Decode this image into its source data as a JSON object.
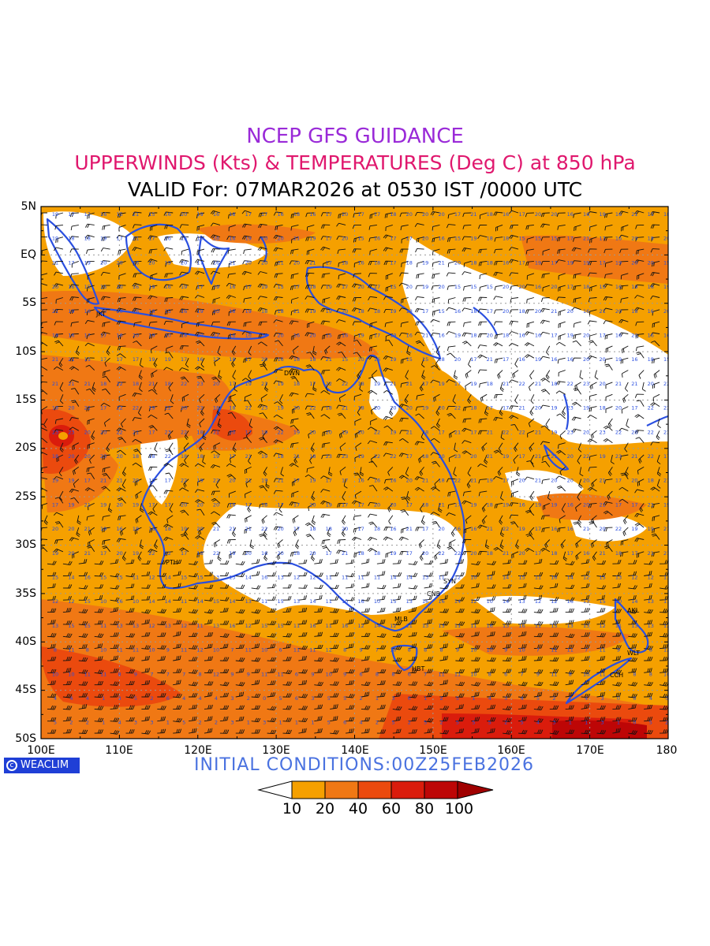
{
  "header": {
    "line1": "NCEP GFS GUIDANCE",
    "line2": "UPPERWINDS (Kts) & TEMPERATURES (Deg C) at 850 hPa",
    "line3": "VALID For: 07MAR2026 at 0530 IST /0000 UTC"
  },
  "map": {
    "lat_labels": [
      "5N",
      "EQ",
      "5S",
      "10S",
      "15S",
      "20S",
      "25S",
      "30S",
      "35S",
      "40S",
      "45S",
      "50S"
    ],
    "lon_labels": [
      "100E",
      "110E",
      "120E",
      "130E",
      "140E",
      "150E",
      "160E",
      "170E",
      "180"
    ],
    "cities": [
      "JKT",
      "DWN",
      "PTH",
      "SYN",
      "CNB",
      "MLB",
      "HBT",
      "AKL",
      "WLT",
      "CCH"
    ],
    "colors": {
      "coastline": "#2a4fe0",
      "grid": "#9a9a9a",
      "temp_labels": "#2a4fe0"
    }
  },
  "footer": {
    "logo": "WEACLIM",
    "logo_icon": "copyright-icon",
    "initial_conditions": "INITIAL CONDITIONS:00Z25FEB2026"
  },
  "colorbar": {
    "labels": [
      "10",
      "20",
      "40",
      "60",
      "80",
      "100"
    ],
    "colors": [
      "#ffffff",
      "#f5a000",
      "#f07814",
      "#eb4a0e",
      "#da1c0c",
      "#bd0606",
      "#a00000"
    ]
  }
}
